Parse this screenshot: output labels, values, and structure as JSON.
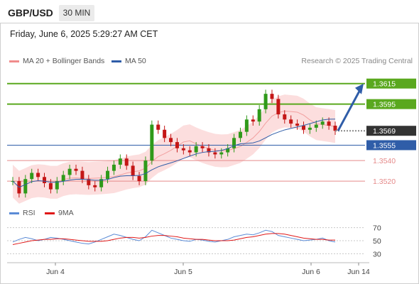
{
  "header": {
    "symbol": "GBP/USD",
    "interval": "30 MIN",
    "timestamp": "Friday, June 6, 2025 5:29:27 AM CET"
  },
  "legend": {
    "price": [
      {
        "label": "MA 20 + Bollinger Bands",
        "color": "#f08c8c"
      },
      {
        "label": "MA 50",
        "color": "#2f5da8"
      }
    ],
    "indicator": [
      {
        "label": "RSI",
        "color": "#5b8bd6"
      },
      {
        "label": "9MA",
        "color": "#e01818"
      }
    ]
  },
  "credit": "Research © 2025 Trading Central",
  "colors": {
    "up": "#2f9a1a",
    "down": "#c41616",
    "resistance": "#5aa81e",
    "support": "#e58a8a",
    "ma50": "#2f5da8",
    "band": "#fcdede",
    "current": "#333333"
  },
  "chart_data": {
    "type": "line",
    "xlabel": "",
    "ylabel": "",
    "x_ticks": [
      "Jun 4",
      "Jun 5",
      "Jun 6",
      "Jun 14"
    ],
    "ylim": [
      1.35,
      1.363
    ],
    "current_price": 1.3569,
    "levels": [
      {
        "value": 1.3615,
        "label": "1.3615",
        "kind": "resistance"
      },
      {
        "value": 1.3595,
        "label": "1.3595",
        "kind": "resistance"
      },
      {
        "value": 1.3555,
        "label": "1.3555",
        "kind": "pivot"
      },
      {
        "value": 1.354,
        "label": "1.3540",
        "kind": "support"
      },
      {
        "value": 1.352,
        "label": "1.3520",
        "kind": "support"
      }
    ],
    "price_series": [
      1.352,
      1.3508,
      1.3522,
      1.3528,
      1.3524,
      1.3518,
      1.3512,
      1.352,
      1.3526,
      1.3532,
      1.353,
      1.3522,
      1.3516,
      1.3514,
      1.3522,
      1.353,
      1.3536,
      1.3542,
      1.3535,
      1.3525,
      1.352,
      1.354,
      1.3575,
      1.357,
      1.3562,
      1.3558,
      1.3552,
      1.355,
      1.3548,
      1.3554,
      1.3552,
      1.3548,
      1.3546,
      1.3548,
      1.3552,
      1.3562,
      1.3568,
      1.358,
      1.3578,
      1.359,
      1.3605,
      1.36,
      1.3585,
      1.358,
      1.3576,
      1.3574,
      1.357,
      1.3572,
      1.3575,
      1.3578,
      1.3574,
      1.3569
    ],
    "forecast": {
      "from": 1.3569,
      "to": 1.3615
    },
    "rsi": {
      "ticks": [
        70,
        50,
        30
      ],
      "ylim": [
        25,
        75
      ],
      "values": [
        48,
        52,
        55,
        53,
        50,
        52,
        55,
        54,
        52,
        50,
        48,
        46,
        45,
        48,
        52,
        56,
        60,
        58,
        55,
        52,
        50,
        56,
        66,
        62,
        58,
        54,
        52,
        50,
        49,
        52,
        51,
        49,
        48,
        50,
        52,
        56,
        58,
        60,
        59,
        62,
        66,
        64,
        58,
        56,
        54,
        52,
        50,
        51,
        52,
        54,
        50,
        48
      ],
      "ma9": [
        44,
        46,
        48,
        50,
        51,
        52,
        52,
        53,
        53,
        52,
        51,
        50,
        49,
        49,
        49,
        50,
        52,
        54,
        55,
        55,
        54,
        55,
        57,
        58,
        58,
        57,
        56,
        54,
        53,
        52,
        52,
        51,
        50,
        50,
        50,
        51,
        53,
        55,
        56,
        58,
        60,
        61,
        61,
        60,
        58,
        56,
        54,
        53,
        52,
        52,
        51,
        51
      ]
    }
  }
}
